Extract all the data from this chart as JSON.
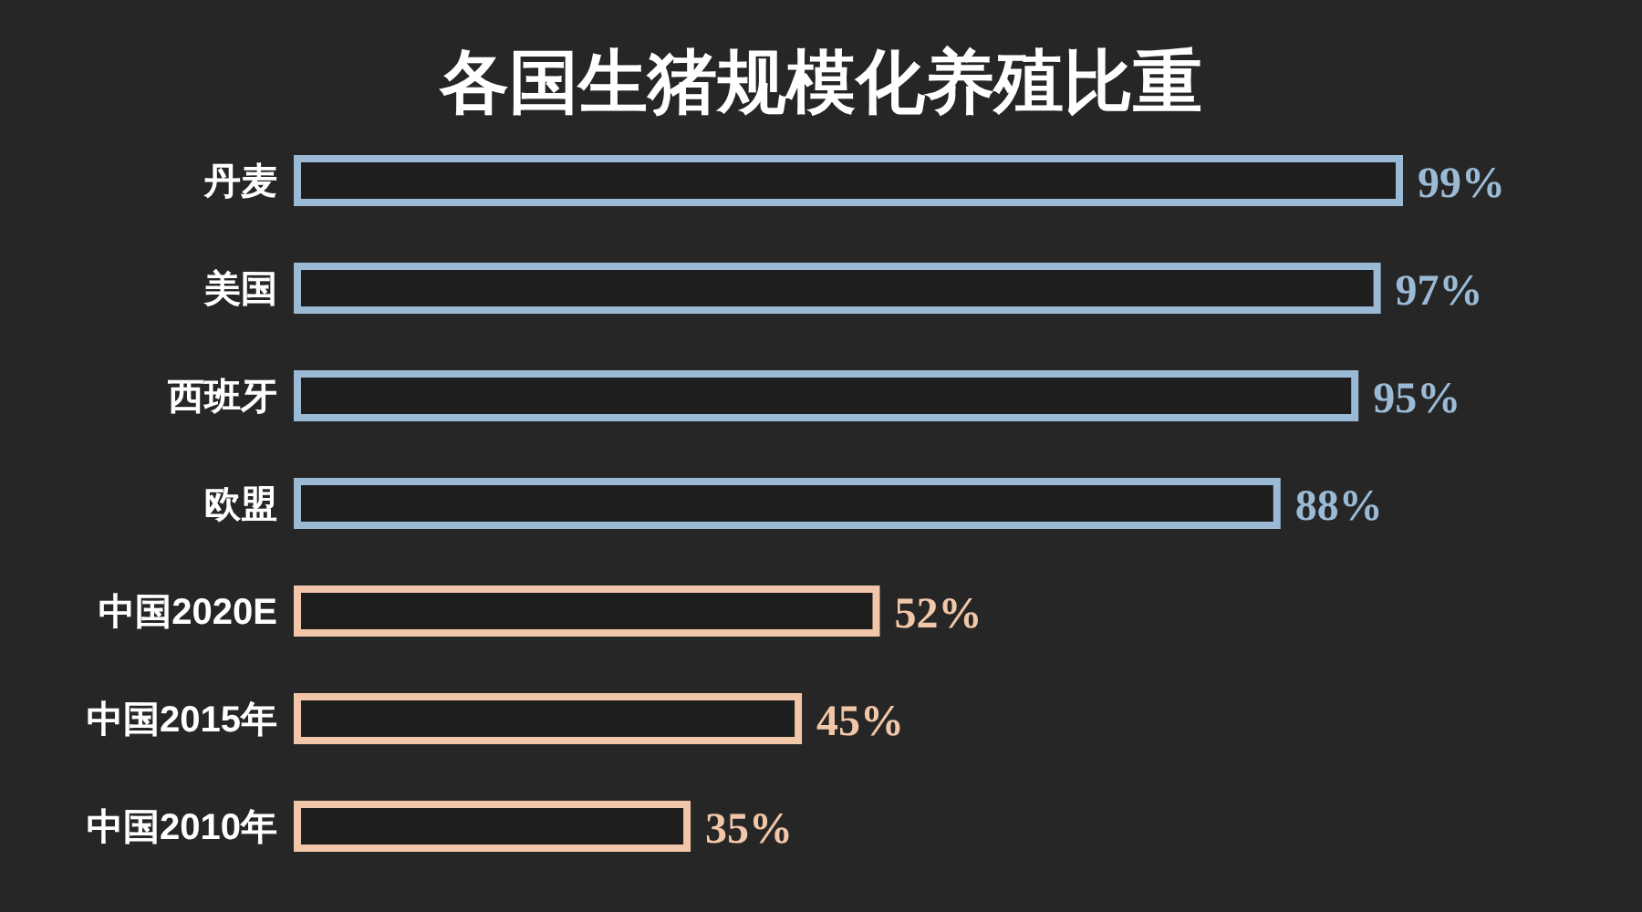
{
  "chart_data": {
    "type": "bar",
    "orientation": "horizontal",
    "title": "各国生猪规模化养殖比重",
    "categories": [
      "丹麦",
      "美国",
      "西班牙",
      "欧盟",
      "中国2020E",
      "中国2015年",
      "中国2010年"
    ],
    "values": [
      99,
      97,
      95,
      88,
      52,
      45,
      35
    ],
    "colors": [
      "#9bbad6",
      "#9bbad6",
      "#9bbad6",
      "#9bbad6",
      "#f2c6a8",
      "#f2c6a8",
      "#f2c6a8"
    ],
    "value_labels": [
      "99%",
      "97%",
      "95%",
      "88%",
      "52%",
      "45%",
      "35%"
    ]
  }
}
